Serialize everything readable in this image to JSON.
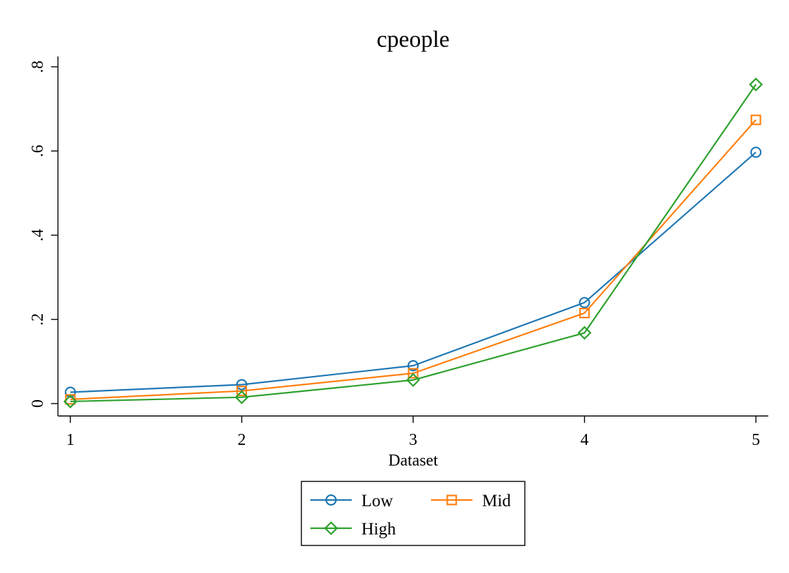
{
  "chart_data": {
    "type": "line",
    "title": "cpeople",
    "xlabel": "Dataset",
    "ylabel": "",
    "x": [
      1,
      2,
      3,
      4,
      5
    ],
    "x_tick_labels": [
      "1",
      "2",
      "3",
      "4",
      "5"
    ],
    "xlim": [
      1,
      5
    ],
    "ylim": [
      0,
      0.8
    ],
    "y_ticks": [
      0,
      0.2,
      0.4,
      0.6,
      0.8
    ],
    "y_tick_labels": [
      "0",
      ".2",
      ".4",
      ".6",
      ".8"
    ],
    "grid": false,
    "legend_position": "bottom",
    "series": [
      {
        "name": "Low",
        "color": "#1f77b4",
        "marker": "circle",
        "values": [
          0.027,
          0.045,
          0.09,
          0.24,
          0.597
        ]
      },
      {
        "name": "Mid",
        "color": "#ff7f0e",
        "marker": "square",
        "values": [
          0.01,
          0.03,
          0.072,
          0.215,
          0.674
        ]
      },
      {
        "name": "High",
        "color": "#2ca02c",
        "marker": "diamond",
        "values": [
          0.005,
          0.015,
          0.056,
          0.168,
          0.758
        ]
      }
    ]
  }
}
